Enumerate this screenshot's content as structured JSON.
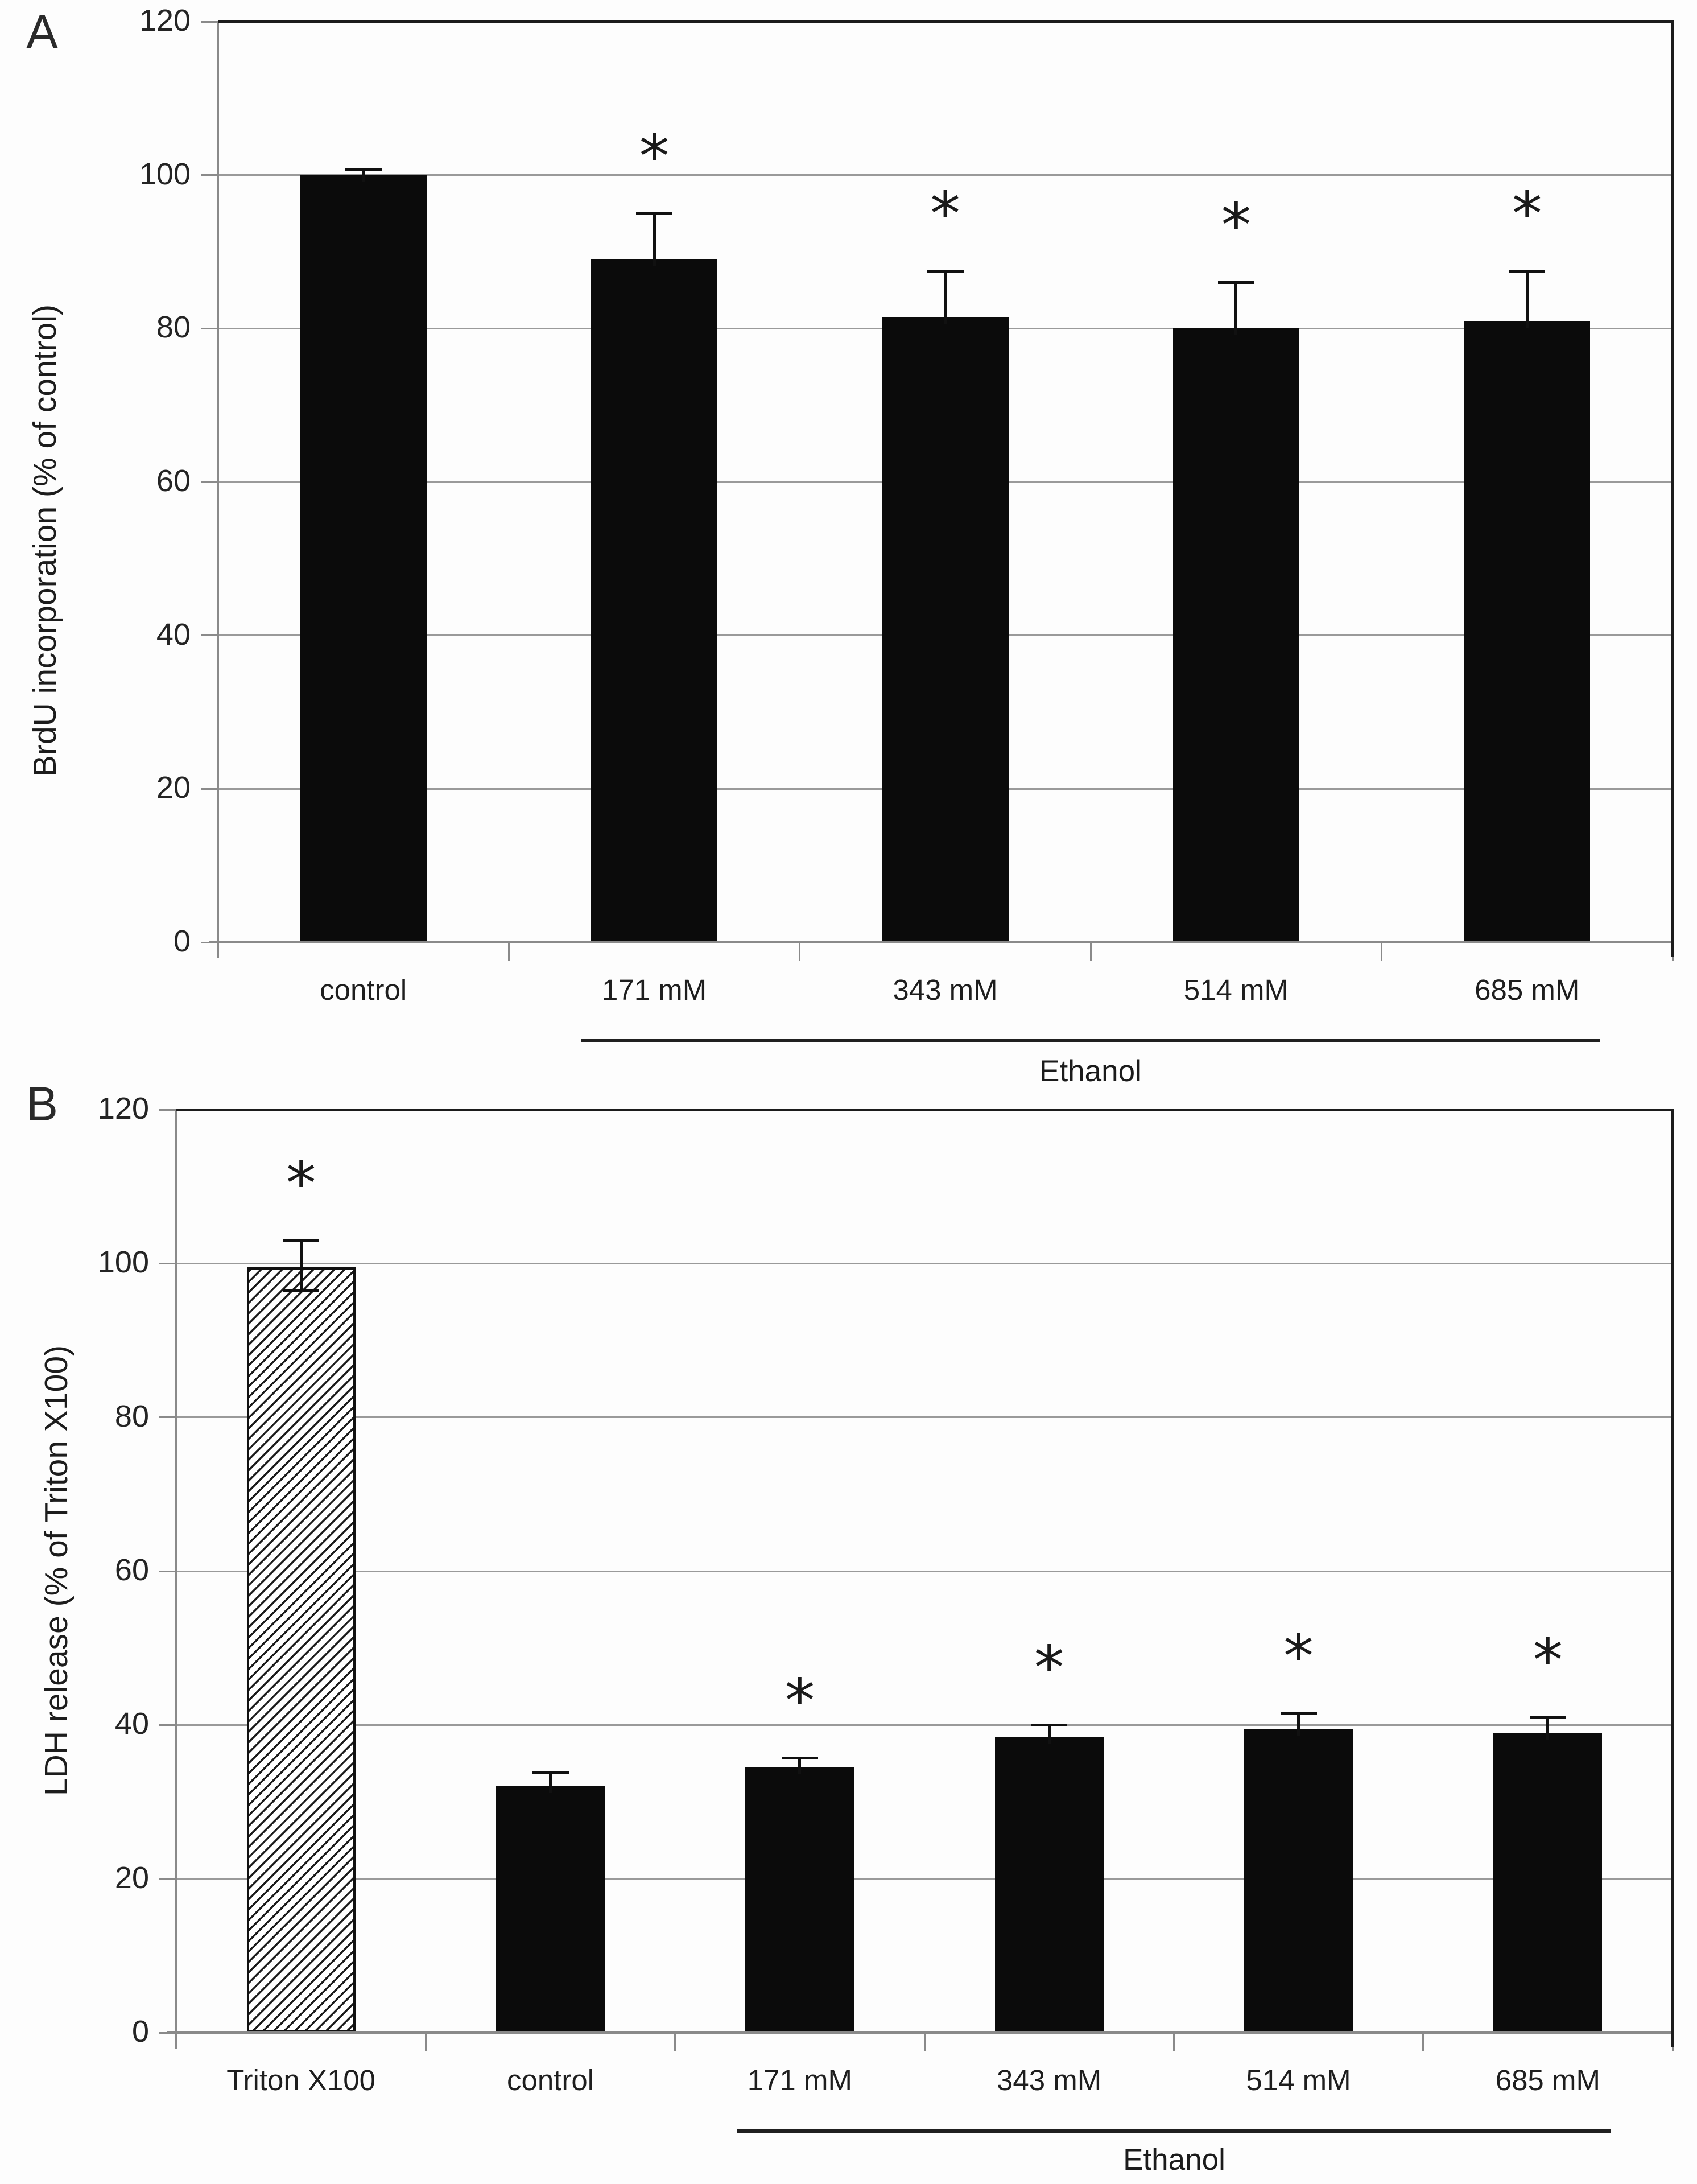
{
  "figure": {
    "panels": [
      {
        "label": "A",
        "y_axis_title": "BrdU incorporation (% of control)",
        "group_label": "Ethanol"
      },
      {
        "label": "B",
        "y_axis_title": "LDH release (% of Triton X100)",
        "group_label": "Ethanol"
      }
    ],
    "colors": {
      "bar": "#0b0b0b",
      "axis": "#8a8a8a",
      "grid": "#9a9a9a",
      "frame": "#1c1c1c",
      "text": "#1f1f1f"
    },
    "sig_symbol": "*"
  },
  "chart_data": [
    {
      "type": "bar",
      "title": "",
      "categories": [
        "control",
        "171 mM",
        "343 mM",
        "514 mM",
        "685 mM"
      ],
      "values": [
        100,
        89,
        81.5,
        80,
        81
      ],
      "errors_up": [
        0.8,
        6,
        6,
        6,
        6.5
      ],
      "errors_down": [
        0,
        0,
        0,
        0,
        0
      ],
      "significant": [
        false,
        true,
        true,
        true,
        true
      ],
      "bar_styles": [
        "solid",
        "solid",
        "solid",
        "solid",
        "solid"
      ],
      "xlabel": "",
      "ylabel": "BrdU incorporation (% of control)",
      "ylim": [
        0,
        120
      ],
      "yticks": [
        0,
        20,
        40,
        60,
        80,
        100,
        120
      ],
      "grid": true,
      "legend_position": "none",
      "group_bracket": {
        "label": "Ethanol",
        "from_index": 1,
        "to_index": 4
      }
    },
    {
      "type": "bar",
      "title": "",
      "categories": [
        "Triton X100",
        "control",
        "171 mM",
        "343 mM",
        "514 mM",
        "685 mM"
      ],
      "values": [
        99.5,
        32,
        34.5,
        38.5,
        39.5,
        39
      ],
      "errors_up": [
        3.5,
        1.8,
        1.2,
        1.5,
        2,
        2
      ],
      "errors_down": [
        3,
        0,
        0,
        0,
        0,
        0
      ],
      "significant": [
        true,
        false,
        true,
        true,
        true,
        true
      ],
      "bar_styles": [
        "hatched",
        "solid",
        "solid",
        "solid",
        "solid",
        "solid"
      ],
      "xlabel": "",
      "ylabel": "LDH release (% of Triton X100)",
      "ylim": [
        0,
        120
      ],
      "yticks": [
        0,
        20,
        40,
        60,
        80,
        100,
        120
      ],
      "grid": true,
      "legend_position": "none",
      "group_bracket": {
        "label": "Ethanol",
        "from_index": 2,
        "to_index": 5
      }
    }
  ]
}
